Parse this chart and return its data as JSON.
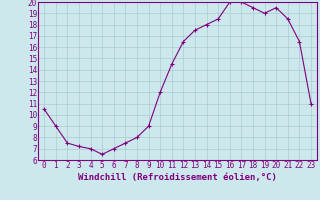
{
  "hours": [
    0,
    1,
    2,
    3,
    4,
    5,
    6,
    7,
    8,
    9,
    10,
    11,
    12,
    13,
    14,
    15,
    16,
    17,
    18,
    19,
    20,
    21,
    22,
    23
  ],
  "values": [
    10.5,
    9.0,
    7.5,
    7.2,
    7.0,
    6.5,
    7.0,
    7.5,
    8.0,
    9.0,
    12.0,
    14.5,
    16.5,
    17.5,
    18.0,
    18.5,
    20.0,
    20.0,
    19.5,
    19.0,
    19.5,
    18.5,
    16.5,
    11.0
  ],
  "line_color": "#800080",
  "marker": "+",
  "bg_color": "#cce8ec",
  "grid_color": "#aacccc",
  "xlabel": "Windchill (Refroidissement éolien,°C)",
  "ylim": [
    6,
    20
  ],
  "xlim": [
    -0.5,
    23.5
  ],
  "yticks": [
    6,
    7,
    8,
    9,
    10,
    11,
    12,
    13,
    14,
    15,
    16,
    17,
    18,
    19,
    20
  ],
  "xticks": [
    0,
    1,
    2,
    3,
    4,
    5,
    6,
    7,
    8,
    9,
    10,
    11,
    12,
    13,
    14,
    15,
    16,
    17,
    18,
    19,
    20,
    21,
    22,
    23
  ],
  "tick_color": "#800080",
  "label_color": "#800080",
  "spine_color": "#800080",
  "font_size": 5.5,
  "xlabel_font_size": 6.5,
  "line_width": 0.8,
  "marker_size": 3.0
}
